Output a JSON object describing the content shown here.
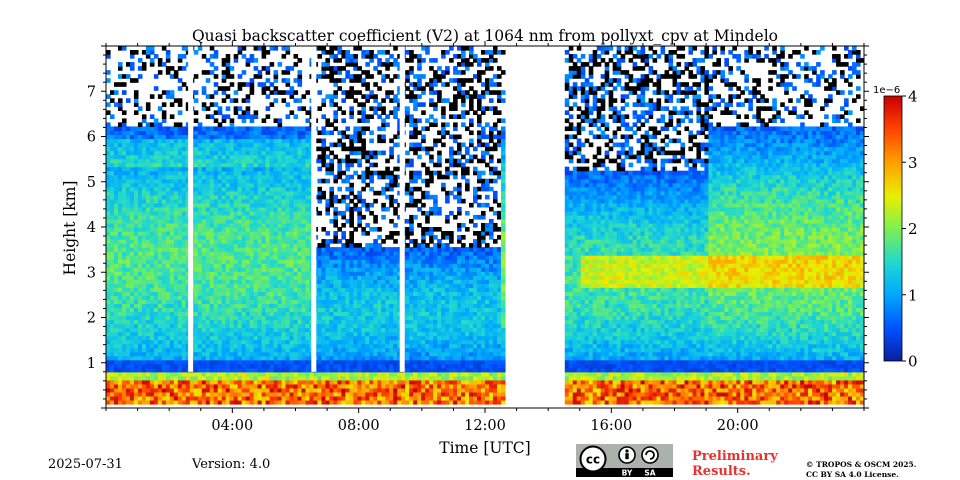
{
  "footer": {
    "date": "2025-07-31",
    "version": "Version: 4.0",
    "prelim_line1": "Preliminary",
    "prelim_line2": "Results.",
    "copyright_line1": "© TROPOS & OSCM 2025.",
    "copyright_line2": "CC BY SA 4.0 License.",
    "license_badge_icon": "cc-by-sa-icon",
    "license_by": "BY",
    "license_sa": "SA"
  },
  "chart_data": {
    "type": "heatmap",
    "title": "Quasi backscatter coefficient (V2) at 1064 nm from pollyxt_cpv at Mindelo",
    "xlabel": "Time [UTC]",
    "ylabel": "Height [km]",
    "xlim": [
      0,
      24
    ],
    "ylim": [
      0,
      8
    ],
    "x_ticks": [
      "04:00",
      "08:00",
      "12:00",
      "16:00",
      "20:00"
    ],
    "x_tick_values": [
      4,
      8,
      12,
      16,
      20
    ],
    "y_ticks": [
      1,
      2,
      3,
      4,
      5,
      6,
      7
    ],
    "colorbar": {
      "min": 0,
      "max": 4,
      "ticks": [
        0,
        1,
        2,
        3,
        4
      ],
      "exponent_label": "1e−6",
      "colormap": "jet",
      "colors": [
        "#0a1f9c",
        "#0060ff",
        "#00b8ff",
        "#30e0c0",
        "#9cf03c",
        "#f0f000",
        "#ff9000",
        "#f03000",
        "#c00000"
      ]
    },
    "data_gaps_hours": [
      [
        12.55,
        14.5
      ]
    ],
    "layers": [
      {
        "start": 0,
        "end": 6.5,
        "top_km": 6.2,
        "bottom_km": 0.8,
        "peak": 1.6
      },
      {
        "start": 6.5,
        "end": 12.5,
        "top_km": 3.5,
        "bottom_km": 0.9,
        "peak": 1.0
      },
      {
        "start": 14.5,
        "end": 19.0,
        "top_km": 5.2,
        "bottom_km": 0.9,
        "peak": 1.5
      },
      {
        "start": 19.0,
        "end": 24.0,
        "top_km": 6.2,
        "bottom_km": 0.9,
        "peak": 1.9
      }
    ],
    "surface_layer": {
      "top_km": 0.75,
      "value_range": [
        2.5,
        4.0
      ]
    }
  }
}
